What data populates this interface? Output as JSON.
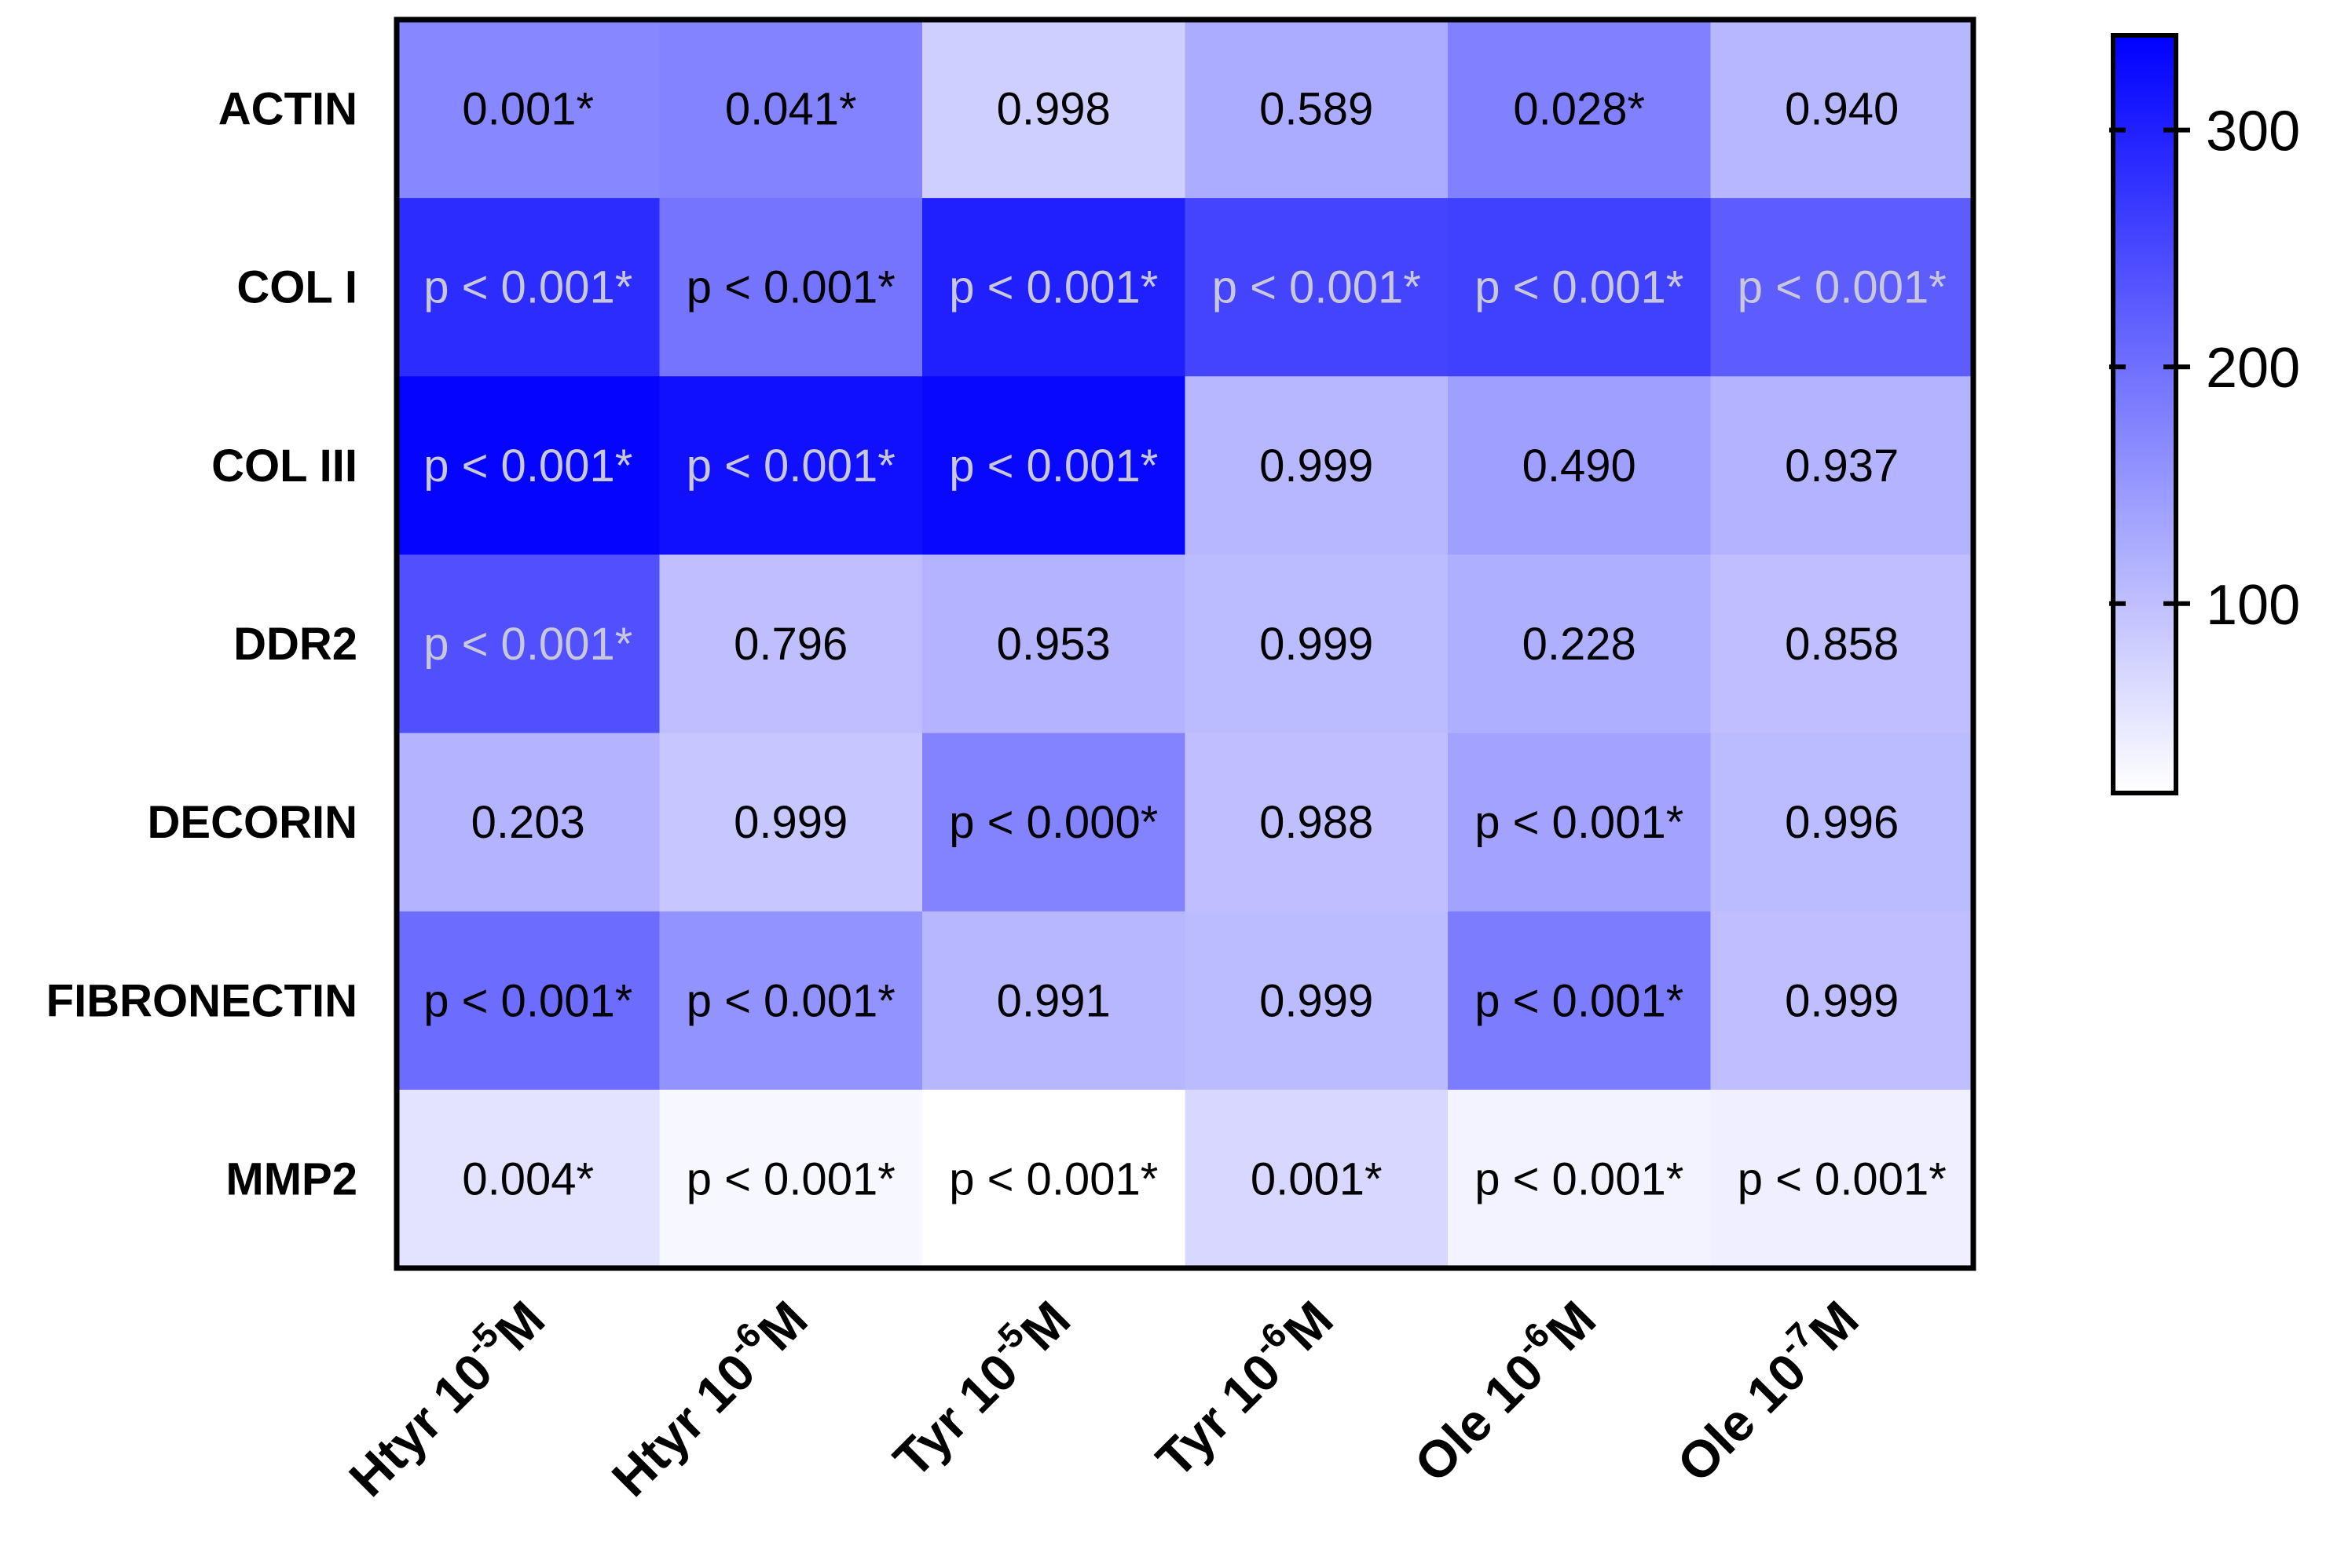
{
  "chart_data": {
    "type": "heatmap",
    "title": "",
    "xlabel": "",
    "ylabel": "",
    "rows": [
      "ACTIN",
      "COL I",
      "COL III",
      "DDR2",
      "DECORIN",
      "FIBRONECTIN",
      "MMP2"
    ],
    "columns": [
      {
        "base": "Htyr 10",
        "exp": "-5",
        "unit": "M"
      },
      {
        "base": "Htyr 10",
        "exp": "-6",
        "unit": "M"
      },
      {
        "base": "Tyr 10",
        "exp": "-5",
        "unit": "M"
      },
      {
        "base": "Tyr 10",
        "exp": "-6",
        "unit": "M"
      },
      {
        "base": "Ole 10",
        "exp": "-6",
        "unit": "M"
      },
      {
        "base": "Ole 10",
        "exp": "-7",
        "unit": "M"
      }
    ],
    "values": [
      [
        170,
        175,
        80,
        125,
        178,
        110
      ],
      [
        285,
        195,
        300,
        255,
        260,
        225
      ],
      [
        335,
        320,
        330,
        110,
        140,
        115
      ],
      [
        240,
        100,
        115,
        105,
        120,
        100
      ],
      [
        115,
        90,
        175,
        100,
        135,
        105
      ],
      [
        205,
        155,
        110,
        105,
        185,
        100
      ],
      [
        55,
        30,
        15,
        70,
        35,
        40
      ]
    ],
    "annotations": [
      [
        "0.001*",
        "0.041*",
        "0.998",
        "0.589",
        "0.028*",
        "0.940"
      ],
      [
        "p < 0.001*",
        "p < 0.001*",
        "p < 0.001*",
        "p < 0.001*",
        "p < 0.001*",
        "p < 0.001*"
      ],
      [
        "p < 0.001*",
        "p < 0.001*",
        "p < 0.001*",
        "0.999",
        "0.490",
        "0.937"
      ],
      [
        "p < 0.001*",
        "0.796",
        "0.953",
        "0.999",
        "0.228",
        "0.858"
      ],
      [
        "0.203",
        "0.999",
        "p < 0.000*",
        "0.988",
        "p < 0.001*",
        "0.996"
      ],
      [
        "p < 0.001*",
        "p < 0.001*",
        "0.991",
        "0.999",
        "p < 0.001*",
        "0.999"
      ],
      [
        "0.004*",
        "p < 0.001*",
        "p < 0.001*",
        "0.001*",
        "p < 0.001*",
        "p < 0.001*"
      ]
    ],
    "colorscale": {
      "min": 20,
      "max": 340,
      "low_color": "#ffffff",
      "high_color": "#0000ff",
      "ticks": [
        100,
        200,
        300
      ],
      "light_text_color": "#c8c8d8",
      "dark_text_color": "#000000"
    },
    "grid": false,
    "legend": "right (color scale)"
  }
}
